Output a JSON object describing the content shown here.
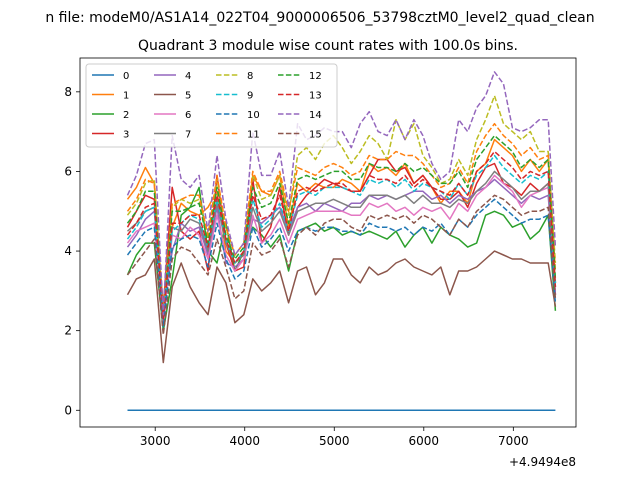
{
  "chart_data": {
    "type": "line",
    "suptitle": "n file: modeM0/AS1A14_022T04_9000006506_53798cztM0_level2_quad_clean",
    "title": "Quadrant 3 module wise count rates with 100.0s bins.",
    "xlabel": "",
    "ylabel": "",
    "offset_label": "+4.9494e8",
    "xlim": [
      2160,
      7700
    ],
    "ylim": [
      -0.42,
      8.85
    ],
    "xticks": [
      3000,
      4000,
      5000,
      6000,
      7000
    ],
    "yticks": [
      0,
      2,
      4,
      6,
      8
    ],
    "legend_position": "upper-left",
    "legend_columns": 4,
    "x": [
      2690,
      2790,
      2890,
      2990,
      3090,
      3190,
      3290,
      3390,
      3490,
      3590,
      3690,
      3790,
      3890,
      3990,
      4090,
      4190,
      4290,
      4390,
      4490,
      4590,
      4690,
      4790,
      4890,
      4990,
      5090,
      5190,
      5290,
      5390,
      5490,
      5590,
      5690,
      5790,
      5890,
      5990,
      6090,
      6190,
      6290,
      6390,
      6490,
      6590,
      6690,
      6790,
      6890,
      6990,
      7090,
      7190,
      7290,
      7390,
      7470
    ],
    "series": [
      {
        "name": "0",
        "color": "#1f77b4",
        "dash": "solid",
        "values": [
          0,
          0,
          0,
          0,
          0,
          0,
          0,
          0,
          0,
          0,
          0,
          0,
          0,
          0,
          0,
          0,
          0,
          0,
          0,
          0,
          0,
          0,
          0,
          0,
          0,
          0,
          0,
          0,
          0,
          0,
          0,
          0,
          0,
          0,
          0,
          0,
          0,
          0,
          0,
          0,
          0,
          0,
          0,
          0,
          0,
          0,
          0,
          0,
          0
        ]
      },
      {
        "name": "1",
        "color": "#ff7f0e",
        "dash": "solid",
        "values": [
          5.3,
          5.6,
          6.1,
          5.7,
          2.2,
          4.6,
          5.2,
          5.0,
          4.9,
          5.1,
          5.5,
          4.0,
          3.7,
          3.9,
          5.9,
          5.5,
          5.4,
          5.9,
          4.6,
          5.7,
          5.5,
          5.7,
          5.6,
          5.6,
          5.8,
          5.7,
          5.5,
          6.2,
          6.0,
          6.1,
          5.9,
          6.2,
          5.7,
          5.9,
          5.6,
          5.2,
          5.5,
          5.5,
          5.2,
          6.0,
          6.2,
          6.8,
          6.6,
          6.4,
          6.0,
          6.3,
          6.0,
          6.3,
          3.2
        ]
      },
      {
        "name": "2",
        "color": "#2ca02c",
        "dash": "solid",
        "values": [
          3.4,
          3.9,
          4.2,
          4.2,
          2.0,
          3.3,
          4.9,
          5.1,
          5.6,
          4.0,
          3.7,
          4.7,
          3.5,
          4.0,
          4.6,
          4.4,
          4.1,
          4.4,
          3.5,
          4.5,
          4.6,
          4.7,
          4.5,
          4.6,
          4.4,
          4.5,
          4.4,
          4.5,
          4.4,
          4.3,
          4.5,
          4.1,
          4.4,
          4.6,
          4.2,
          4.6,
          4.4,
          4.3,
          4.1,
          4.2,
          4.9,
          5.0,
          4.9,
          4.6,
          4.7,
          4.3,
          4.5,
          4.9,
          2.5
        ]
      },
      {
        "name": "3",
        "color": "#d62728",
        "dash": "solid",
        "values": [
          4.6,
          5.0,
          5.4,
          5.3,
          2.6,
          5.6,
          4.5,
          4.3,
          4.5,
          3.5,
          5.9,
          4.2,
          3.5,
          3.6,
          5.8,
          4.2,
          4.6,
          5.6,
          4.4,
          5.1,
          5.4,
          5.6,
          5.8,
          5.7,
          5.6,
          5.5,
          5.5,
          5.9,
          6.3,
          6.3,
          6.0,
          6.1,
          5.7,
          5.9,
          5.6,
          5.3,
          5.3,
          5.5,
          5.1,
          5.7,
          6.1,
          6.2,
          5.7,
          5.6,
          5.4,
          5.7,
          5.5,
          5.7,
          2.9
        ]
      },
      {
        "name": "4",
        "color": "#9467bd",
        "dash": "solid",
        "values": [
          4.1,
          4.4,
          4.8,
          5.0,
          2.5,
          4.0,
          4.7,
          4.5,
          4.6,
          3.9,
          5.1,
          3.7,
          3.6,
          3.8,
          4.8,
          4.7,
          4.9,
          5.1,
          4.5,
          5.1,
          5.2,
          5.0,
          5.2,
          5.1,
          5.0,
          5.2,
          5.2,
          5.4,
          5.3,
          5.4,
          5.3,
          5.4,
          5.5,
          5.5,
          5.3,
          5.4,
          5.2,
          5.4,
          5.3,
          5.5,
          5.6,
          5.8,
          5.6,
          5.4,
          5.2,
          5.4,
          5.3,
          5.4,
          2.9
        ]
      },
      {
        "name": "5",
        "color": "#8c564b",
        "dash": "solid",
        "values": [
          2.9,
          3.3,
          3.4,
          3.8,
          1.2,
          3.1,
          3.7,
          3.1,
          2.7,
          2.4,
          3.6,
          3.2,
          2.2,
          2.4,
          3.3,
          3.0,
          3.2,
          3.5,
          2.7,
          3.5,
          3.6,
          2.9,
          3.2,
          3.8,
          3.8,
          3.4,
          3.2,
          3.6,
          3.4,
          3.5,
          3.7,
          3.8,
          3.6,
          3.5,
          3.4,
          3.6,
          2.9,
          3.5,
          3.5,
          3.6,
          3.8,
          4.0,
          3.9,
          3.8,
          3.8,
          3.7,
          3.7,
          3.7,
          2.6
        ]
      },
      {
        "name": "6",
        "color": "#e377c2",
        "dash": "solid",
        "values": [
          4.2,
          4.5,
          4.6,
          4.7,
          2.2,
          4.4,
          4.3,
          4.6,
          4.4,
          3.8,
          4.9,
          3.9,
          3.5,
          3.8,
          4.9,
          4.2,
          4.4,
          4.8,
          4.2,
          4.8,
          4.9,
          5.0,
          5.0,
          5.0,
          5.0,
          4.9,
          4.9,
          5.2,
          5.1,
          5.2,
          5.0,
          5.1,
          4.9,
          5.1,
          5.0,
          5.1,
          4.8,
          5.2,
          5.0,
          5.4,
          5.6,
          5.9,
          5.7,
          5.5,
          5.1,
          5.4,
          5.5,
          5.6,
          3.2
        ]
      },
      {
        "name": "7",
        "color": "#7f7f7f",
        "dash": "solid",
        "values": [
          4.5,
          4.7,
          5.0,
          5.1,
          2.3,
          4.6,
          4.5,
          4.8,
          4.7,
          4.0,
          5.2,
          4.2,
          3.7,
          3.9,
          5.1,
          4.5,
          4.7,
          5.0,
          4.4,
          5.0,
          5.1,
          5.2,
          5.2,
          5.3,
          5.2,
          5.1,
          5.1,
          5.4,
          5.4,
          5.4,
          5.3,
          5.4,
          5.2,
          5.4,
          5.2,
          5.2,
          5.1,
          5.3,
          5.2,
          5.5,
          5.7,
          6.0,
          5.8,
          5.6,
          5.3,
          5.5,
          5.5,
          5.7,
          3.1
        ]
      },
      {
        "name": "8",
        "color": "#bcbd22",
        "dash": "dashed",
        "values": [
          4.9,
          5.2,
          5.7,
          5.8,
          2.4,
          5.1,
          5.3,
          5.2,
          5.3,
          4.3,
          5.8,
          4.6,
          3.9,
          4.2,
          5.9,
          5.3,
          5.4,
          5.9,
          4.9,
          6.4,
          6.6,
          6.3,
          6.7,
          6.9,
          6.6,
          6.2,
          6.5,
          6.9,
          6.7,
          6.3,
          7.3,
          6.8,
          7.2,
          6.4,
          6.1,
          5.7,
          5.8,
          6.3,
          5.9,
          6.8,
          7.3,
          7.9,
          7.2,
          7.0,
          6.8,
          7.0,
          6.5,
          6.5,
          3.7
        ]
      },
      {
        "name": "9",
        "color": "#17becf",
        "dash": "dashed",
        "values": [
          4.3,
          4.6,
          5.0,
          5.1,
          2.4,
          4.5,
          4.7,
          4.9,
          4.8,
          4.1,
          5.3,
          4.3,
          3.7,
          4.0,
          5.3,
          4.6,
          4.8,
          5.2,
          4.5,
          5.4,
          5.5,
          5.4,
          5.6,
          5.6,
          5.6,
          5.5,
          5.4,
          5.8,
          5.7,
          5.8,
          5.6,
          5.8,
          5.5,
          5.7,
          5.6,
          5.5,
          5.3,
          5.7,
          5.4,
          5.9,
          6.1,
          6.4,
          6.1,
          5.9,
          5.7,
          5.9,
          5.8,
          6.0,
          3.2
        ]
      },
      {
        "name": "10",
        "color": "#1f77b4",
        "dash": "dashed",
        "values": [
          3.9,
          4.2,
          4.5,
          4.6,
          2.1,
          4.1,
          4.3,
          4.4,
          4.3,
          3.6,
          4.7,
          3.8,
          3.3,
          3.5,
          4.6,
          4.1,
          4.3,
          4.6,
          4.0,
          4.5,
          4.6,
          4.5,
          4.6,
          4.6,
          4.5,
          4.5,
          4.4,
          4.7,
          4.6,
          4.6,
          4.5,
          4.6,
          4.4,
          4.6,
          4.5,
          4.7,
          4.4,
          4.8,
          4.6,
          4.9,
          5.1,
          5.3,
          5.1,
          4.9,
          4.7,
          4.8,
          4.8,
          4.9,
          2.7
        ]
      },
      {
        "name": "11",
        "color": "#ff7f0e",
        "dash": "dashed",
        "values": [
          5.0,
          5.3,
          5.8,
          5.7,
          2.5,
          5.2,
          5.3,
          5.4,
          5.4,
          4.4,
          5.9,
          4.6,
          3.9,
          4.2,
          6.0,
          5.5,
          5.5,
          6.0,
          5.0,
          6.1,
          6.0,
          5.9,
          6.1,
          6.2,
          6.1,
          5.9,
          6.0,
          6.4,
          6.3,
          6.3,
          6.5,
          6.4,
          6.4,
          6.2,
          5.9,
          5.6,
          5.7,
          6.1,
          5.7,
          6.5,
          6.9,
          7.2,
          6.9,
          6.7,
          6.4,
          6.6,
          6.3,
          6.4,
          3.5
        ]
      },
      {
        "name": "12",
        "color": "#2ca02c",
        "dash": "dashed",
        "values": [
          4.7,
          5.0,
          5.5,
          5.5,
          2.4,
          5.0,
          5.0,
          5.1,
          5.2,
          4.2,
          5.6,
          4.4,
          3.8,
          4.1,
          5.6,
          5.1,
          5.2,
          5.7,
          4.7,
          5.8,
          5.9,
          5.8,
          5.9,
          6.0,
          6.0,
          5.8,
          5.8,
          6.2,
          6.1,
          6.1,
          6.0,
          6.2,
          6.0,
          6.1,
          5.9,
          5.7,
          5.7,
          6.0,
          5.6,
          6.3,
          6.6,
          6.9,
          6.7,
          6.5,
          6.1,
          6.3,
          6.1,
          6.3,
          3.3
        ]
      },
      {
        "name": "13",
        "color": "#d62728",
        "dash": "dashed",
        "values": [
          4.4,
          4.7,
          5.1,
          5.2,
          2.3,
          4.7,
          4.7,
          4.9,
          4.9,
          4.1,
          5.4,
          4.3,
          3.7,
          4.0,
          5.4,
          4.8,
          4.9,
          5.4,
          4.5,
          5.5,
          5.6,
          5.5,
          5.6,
          5.7,
          5.7,
          5.5,
          5.5,
          5.9,
          5.8,
          5.8,
          5.7,
          5.9,
          5.6,
          5.8,
          5.6,
          5.5,
          5.4,
          5.7,
          5.4,
          6.0,
          6.2,
          6.5,
          6.3,
          6.1,
          5.8,
          6.0,
          5.9,
          6.0,
          3.1
        ]
      },
      {
        "name": "14",
        "color": "#9467bd",
        "dash": "dashed",
        "values": [
          5.4,
          5.9,
          6.7,
          6.8,
          2.4,
          6.9,
          5.8,
          5.6,
          5.9,
          4.5,
          6.4,
          4.8,
          3.9,
          4.2,
          7.0,
          5.9,
          5.9,
          6.5,
          5.1,
          7.2,
          6.8,
          6.9,
          7.1,
          7.0,
          7.0,
          6.6,
          7.2,
          7.5,
          7.0,
          6.9,
          7.3,
          6.8,
          7.3,
          6.9,
          6.2,
          5.8,
          6.0,
          7.3,
          7.0,
          7.6,
          7.9,
          8.5,
          8.2,
          7.1,
          7.0,
          7.1,
          7.3,
          7.3,
          4.1
        ]
      },
      {
        "name": "15",
        "color": "#8c564b",
        "dash": "dashed",
        "values": [
          3.4,
          3.7,
          4.0,
          4.3,
          1.9,
          3.8,
          4.1,
          4.0,
          3.7,
          3.4,
          4.3,
          3.6,
          2.8,
          3.0,
          4.2,
          3.9,
          4.0,
          4.3,
          3.6,
          4.4,
          4.6,
          4.4,
          4.7,
          4.8,
          4.8,
          4.6,
          4.5,
          4.9,
          4.8,
          4.9,
          4.8,
          4.9,
          4.7,
          4.9,
          4.8,
          4.6,
          4.4,
          4.8,
          4.6,
          5.0,
          5.2,
          5.4,
          5.3,
          5.1,
          4.9,
          5.0,
          5.0,
          5.1,
          2.8
        ]
      }
    ]
  }
}
